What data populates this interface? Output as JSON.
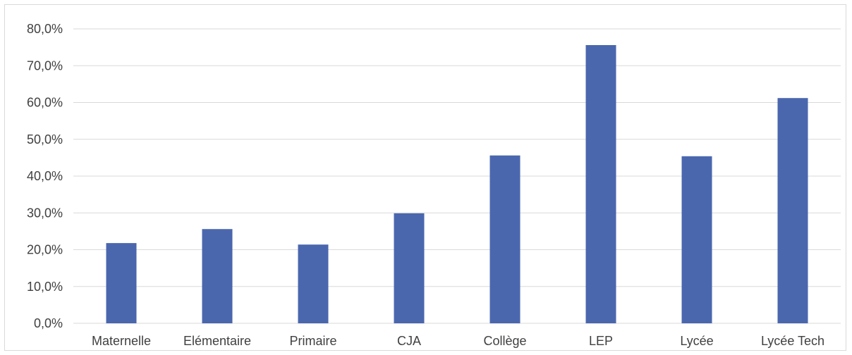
{
  "chart_data": {
    "type": "bar",
    "title": "",
    "xlabel": "",
    "ylabel": "",
    "categories": [
      "Maternelle",
      "Elémentaire",
      "Primaire",
      "CJA",
      "Collège",
      "LEP",
      "Lycée",
      "Lycée Tech"
    ],
    "values": [
      21.8,
      25.6,
      21.4,
      29.9,
      45.6,
      75.6,
      45.4,
      61.2
    ],
    "ylim": [
      0,
      80
    ],
    "yticks": [
      0,
      10,
      20,
      30,
      40,
      50,
      60,
      70,
      80
    ],
    "ytick_labels": [
      "0,0%",
      "10,0%",
      "20,0%",
      "30,0%",
      "40,0%",
      "50,0%",
      "60,0%",
      "70,0%",
      "80,0%"
    ],
    "grid": true,
    "legend": "none",
    "colors": {
      "bar": "#4a67ae",
      "grid": "#d9d9d9",
      "text": "#404040"
    }
  }
}
